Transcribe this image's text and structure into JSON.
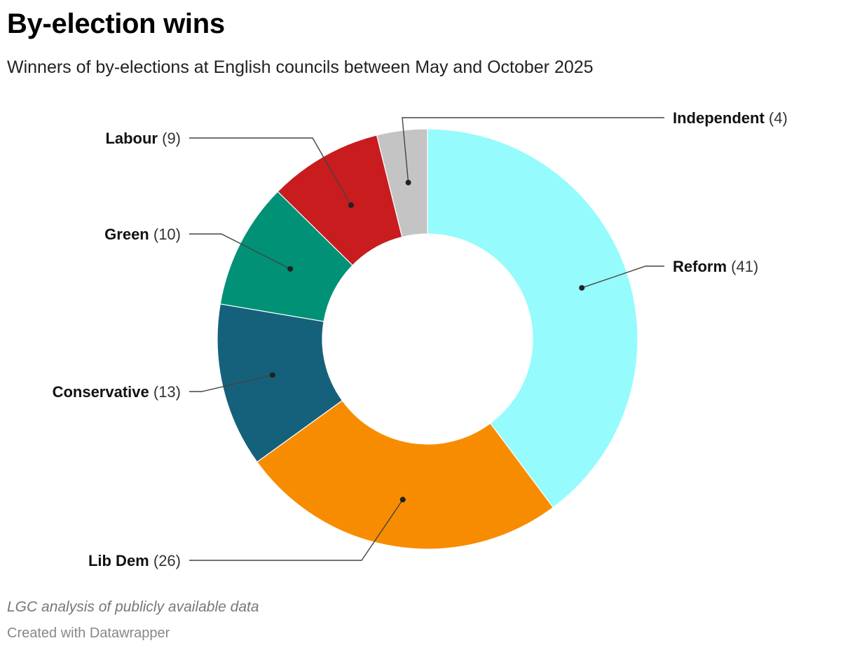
{
  "title": "By-election wins",
  "subtitle": "Winners of by-elections at English councils between May and October 2025",
  "source": "LGC analysis of publicly available data",
  "credit": "Created with Datawrapper",
  "chart_data": {
    "type": "pie",
    "donut": true,
    "order": "clockwise-from-top",
    "slices": [
      {
        "label": "Reform",
        "value": 41,
        "display": "(41)",
        "color": "#95fbfd"
      },
      {
        "label": "Lib Dem",
        "value": 26,
        "display": "(26)",
        "color": "#f88c00"
      },
      {
        "label": "Conservative",
        "value": 13,
        "display": "(13)",
        "color": "#15617b"
      },
      {
        "label": "Green",
        "value": 10,
        "display": "(10)",
        "color": "#009177"
      },
      {
        "label": "Labour",
        "value": 9,
        "display": "(9)",
        "color": "#c81c1e"
      },
      {
        "label": "Independent",
        "value": 4,
        "display": "(4)",
        "color": "#c4c4c4"
      }
    ]
  }
}
